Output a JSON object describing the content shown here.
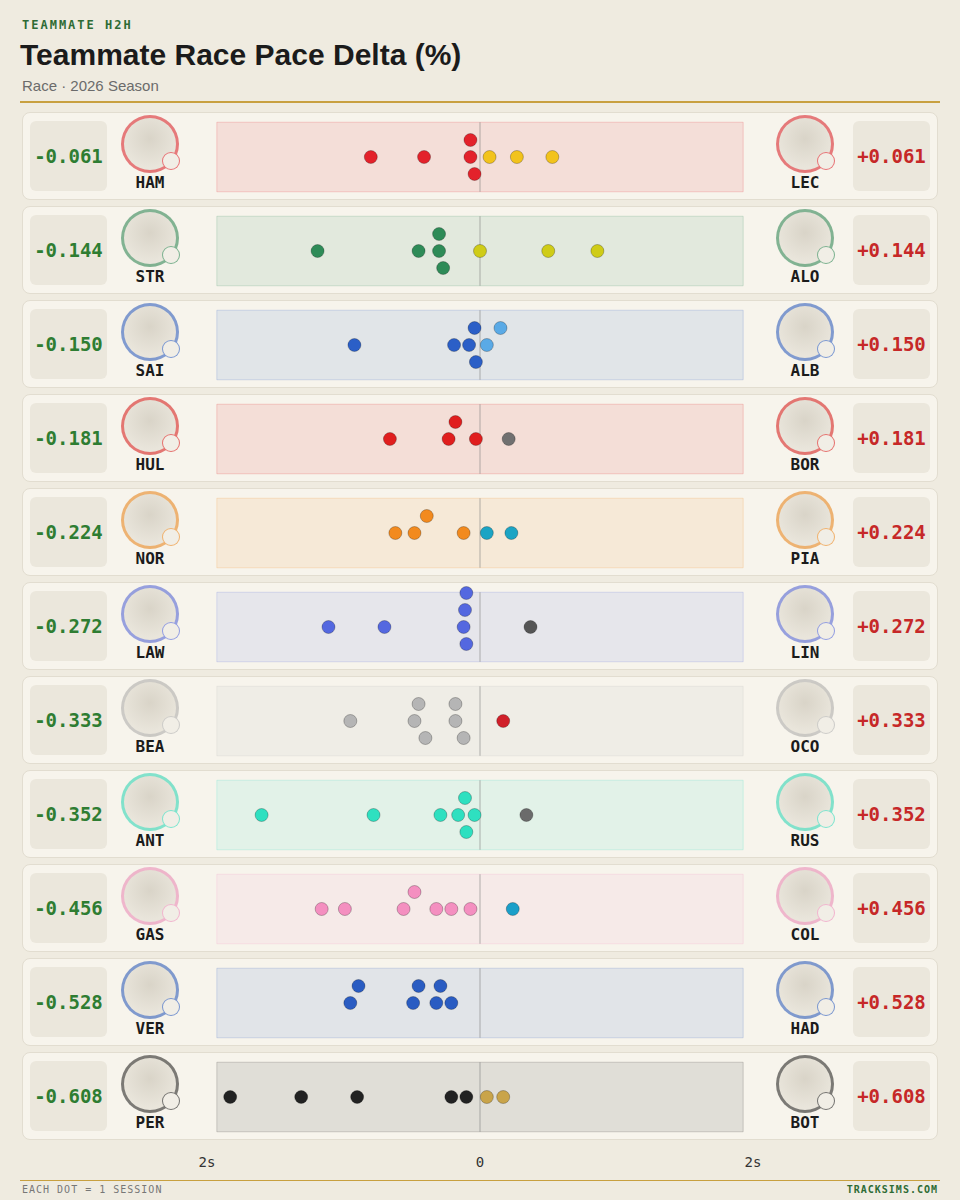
{
  "chart_data": {
    "type": "scatter",
    "header": "TEAMMATE H2H",
    "title": "Teammate Race Pace Delta (%)",
    "subtitle": "Race · 2026 Season",
    "footer_note": "EACH DOT = 1 SESSION",
    "footer_brand": "TRACKSIMS.COM",
    "xlim": [
      -2,
      2
    ],
    "xticks": [
      {
        "value": -2,
        "label": "2s"
      },
      {
        "value": 0,
        "label": "0"
      },
      {
        "value": 2,
        "label": "2s"
      }
    ],
    "tick_labels": "x",
    "grid": false,
    "rows": [
      {
        "left": {
          "name": "HAM",
          "value": -0.061,
          "label": "-0.061"
        },
        "right": {
          "name": "LEC",
          "value": 0.061,
          "label": "+0.061"
        },
        "x": [
          -0.8,
          -0.41,
          -0.04,
          -0.07,
          -0.07,
          0.07,
          0.27,
          0.53
        ],
        "colors": [
          "#e3222b",
          "#e3222b",
          "#e3222b",
          "#e3222b",
          "#e3222b",
          "#f2c31c",
          "#f2c31c",
          "#f2c31c"
        ]
      },
      {
        "left": {
          "name": "STR",
          "value": -0.144,
          "label": "-0.144"
        },
        "right": {
          "name": "ALO",
          "value": 0.144,
          "label": "+0.144"
        },
        "x": [
          -1.19,
          -0.45,
          -0.27,
          -0.3,
          -0.3,
          0.0,
          0.5,
          0.86
        ],
        "colors": [
          "#2e8b57",
          "#2e8b57",
          "#2e8b57",
          "#2e8b57",
          "#2e8b57",
          "#cfcc17",
          "#cfcc17",
          "#cfcc17"
        ]
      },
      {
        "left": {
          "name": "SAI",
          "value": -0.15,
          "label": "-0.150"
        },
        "right": {
          "name": "ALB",
          "value": 0.15,
          "label": "+0.150"
        },
        "x": [
          -0.92,
          -0.19,
          -0.08,
          -0.04,
          -0.03,
          0.15,
          0.05
        ],
        "colors": [
          "#2b5fc7",
          "#2b5fc7",
          "#2b5fc7",
          "#2b5fc7",
          "#2b5fc7",
          "#5aaae6",
          "#5aaae6"
        ]
      },
      {
        "left": {
          "name": "HUL",
          "value": -0.181,
          "label": "-0.181"
        },
        "right": {
          "name": "BOR",
          "value": 0.181,
          "label": "+0.181"
        },
        "x": [
          -0.66,
          -0.23,
          -0.18,
          -0.03,
          0.21
        ],
        "colors": [
          "#e01e1e",
          "#e01e1e",
          "#e01e1e",
          "#e01e1e",
          "#707070"
        ]
      },
      {
        "left": {
          "name": "NOR",
          "value": -0.224,
          "label": "-0.224"
        },
        "right": {
          "name": "PIA",
          "value": 0.224,
          "label": "+0.224"
        },
        "x": [
          -0.62,
          -0.48,
          -0.39,
          -0.12,
          0.05,
          0.23
        ],
        "colors": [
          "#f28a1e",
          "#f28a1e",
          "#f28a1e",
          "#f28a1e",
          "#1ca4c4",
          "#1ca4c4"
        ]
      },
      {
        "left": {
          "name": "LAW",
          "value": -0.272,
          "label": "-0.272"
        },
        "right": {
          "name": "LIN",
          "value": 0.272,
          "label": "+0.272"
        },
        "x": [
          -1.11,
          -0.7,
          -0.12,
          -0.1,
          -0.1,
          -0.11,
          0.37
        ],
        "colors": [
          "#5468e0",
          "#5468e0",
          "#5468e0",
          "#5468e0",
          "#5468e0",
          "#5468e0",
          "#555555"
        ]
      },
      {
        "left": {
          "name": "BEA",
          "value": -0.333,
          "label": "-0.333"
        },
        "right": {
          "name": "OCO",
          "value": 0.333,
          "label": "+0.333"
        },
        "x": [
          -0.95,
          -0.4,
          -0.45,
          -0.48,
          -0.12,
          -0.18,
          -0.18,
          0.17
        ],
        "colors": [
          "#b5b5b5",
          "#b5b5b5",
          "#b5b5b5",
          "#b5b5b5",
          "#b5b5b5",
          "#b5b5b5",
          "#b5b5b5",
          "#d0202a"
        ]
      },
      {
        "left": {
          "name": "ANT",
          "value": -0.352,
          "label": "-0.352"
        },
        "right": {
          "name": "RUS",
          "value": 0.352,
          "label": "+0.352"
        },
        "x": [
          -1.6,
          -0.78,
          -0.29,
          -0.1,
          -0.11,
          -0.04,
          -0.16,
          0.34
        ],
        "colors": [
          "#2ee0c0",
          "#2ee0c0",
          "#2ee0c0",
          "#2ee0c0",
          "#2ee0c0",
          "#2ee0c0",
          "#2ee0c0",
          "#6b6b6b"
        ]
      },
      {
        "left": {
          "name": "GAS",
          "value": -0.456,
          "label": "-0.456"
        },
        "right": {
          "name": "COL",
          "value": 0.456,
          "label": "+0.456"
        },
        "x": [
          -1.16,
          -0.99,
          -0.56,
          -0.48,
          -0.32,
          -0.21,
          -0.07,
          0.24
        ],
        "colors": [
          "#f48fc0",
          "#f48fc0",
          "#f48fc0",
          "#f48fc0",
          "#f48fc0",
          "#f48fc0",
          "#f48fc0",
          "#1a9fc9"
        ]
      },
      {
        "left": {
          "name": "VER",
          "value": -0.528,
          "label": "-0.528"
        },
        "right": {
          "name": "HAD",
          "value": 0.528,
          "label": "+0.528"
        },
        "x": [
          -0.95,
          -0.89,
          -0.49,
          -0.45,
          -0.32,
          -0.29,
          -0.21
        ],
        "colors": [
          "#2a5cc2",
          "#2a5cc2",
          "#2a5cc2",
          "#2a5cc2",
          "#2a5cc2",
          "#2a5cc2",
          "#2a5cc2"
        ]
      },
      {
        "left": {
          "name": "PER",
          "value": -0.608,
          "label": "-0.608"
        },
        "right": {
          "name": "BOT",
          "value": 0.608,
          "label": "+0.608"
        },
        "x": [
          -1.83,
          -1.31,
          -0.9,
          -0.21,
          -0.1,
          0.05,
          0.17
        ],
        "colors": [
          "#222222",
          "#222222",
          "#222222",
          "#222222",
          "#222222",
          "#c9a44a",
          "#c9a44a"
        ]
      }
    ]
  }
}
